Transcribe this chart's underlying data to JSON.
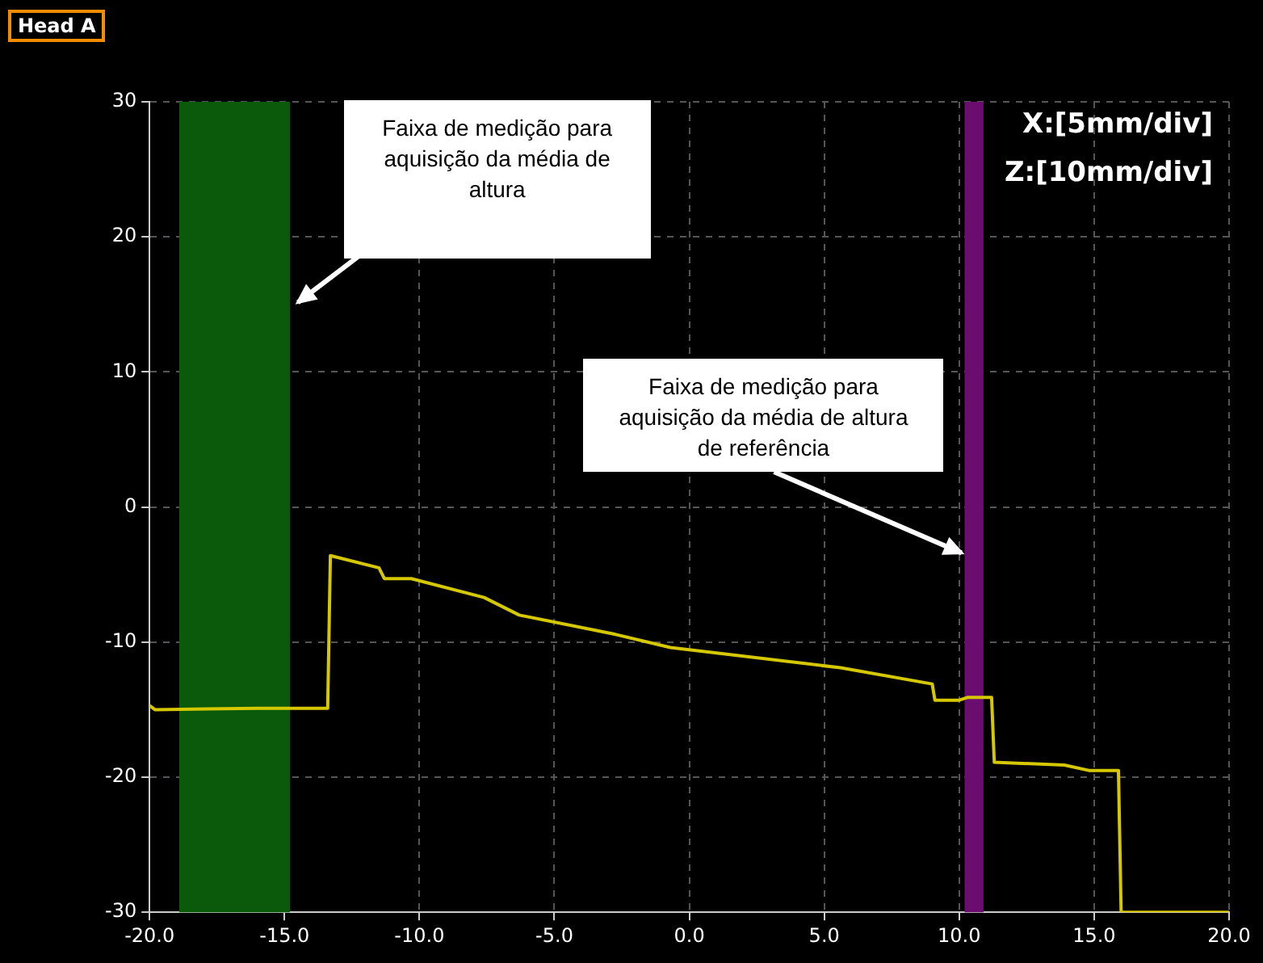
{
  "chart_data": {
    "type": "line",
    "title": "Head A",
    "series": [
      {
        "color": "#d6c800",
        "x": [
          -20,
          -19.8,
          -16,
          -13.4,
          -13.3,
          -11.5,
          -11.3,
          -10.3,
          -7.6,
          -6.3,
          -2.8,
          -0.7,
          5.6,
          9.0,
          9.1,
          10.0,
          10.3,
          11.2,
          11.3,
          13.9,
          14.8,
          15.9,
          16.0,
          20
        ],
        "values": [
          -14.7,
          -15,
          -14.9,
          -14.9,
          -3.6,
          -4.5,
          -5.3,
          -5.3,
          -6.7,
          -8.0,
          -9.4,
          -10.4,
          -11.9,
          -13.1,
          -14.3,
          -14.3,
          -14.1,
          -14.1,
          -18.9,
          -19.1,
          -19.5,
          -19.5,
          -30,
          -30
        ]
      }
    ],
    "xlim": [
      -20,
      20
    ],
    "ylim": [
      -30,
      30
    ],
    "xticks": [
      {
        "value": -20,
        "label": "-20.0"
      },
      {
        "value": -15,
        "label": "-15.0"
      },
      {
        "value": -10,
        "label": "-10.0"
      },
      {
        "value": -5,
        "label": "-5.0"
      },
      {
        "value": 0,
        "label": "0.0"
      },
      {
        "value": 5,
        "label": "5.0"
      },
      {
        "value": 10,
        "label": "10.0"
      },
      {
        "value": 15,
        "label": "15.0"
      },
      {
        "value": 20,
        "label": "20.0"
      }
    ],
    "yticks": [
      -30,
      -20,
      -10,
      0,
      10,
      20,
      30
    ],
    "grid": true,
    "marker": "none",
    "line_style": "solid",
    "legend": false,
    "bands": [
      {
        "axis": "x",
        "from": -18.9,
        "to": -14.8,
        "color": "#0b5a0b"
      },
      {
        "axis": "x",
        "from": 10.2,
        "to": 10.9,
        "color": "#6b0d70"
      }
    ],
    "annotations": [
      {
        "text": "Faixa de medição para aquisição da média de altura",
        "x": -14.6,
        "y": 15
      },
      {
        "text": "Faixa de medição para aquisição da média de altura de referência",
        "x": 10.2,
        "y": -3.5
      },
      "X:[5mm/div]",
      "Z:[10mm/div]"
    ]
  }
}
